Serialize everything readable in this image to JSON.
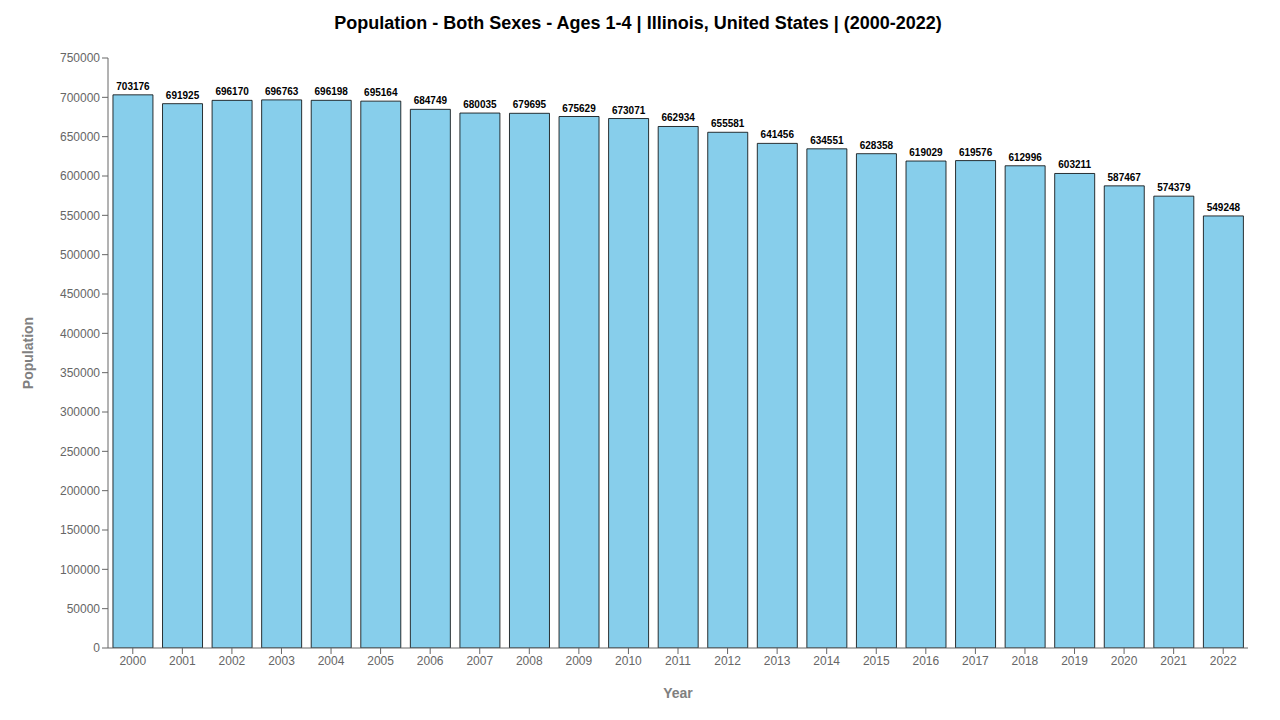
{
  "chart_data": {
    "type": "bar",
    "title": "Population - Both Sexes - Ages 1-4 | Illinois, United States |  (2000-2022)",
    "xlabel": "Year",
    "ylabel": "Population",
    "categories": [
      "2000",
      "2001",
      "2002",
      "2003",
      "2004",
      "2005",
      "2006",
      "2007",
      "2008",
      "2009",
      "2010",
      "2011",
      "2012",
      "2013",
      "2014",
      "2015",
      "2016",
      "2017",
      "2018",
      "2019",
      "2020",
      "2021",
      "2022"
    ],
    "values": [
      703176,
      691925,
      696170,
      696763,
      696198,
      695164,
      684749,
      680035,
      679695,
      675629,
      673071,
      662934,
      655581,
      641456,
      634551,
      628358,
      619029,
      619576,
      612996,
      603211,
      587467,
      574379,
      549248
    ],
    "color": "#87CEEB",
    "ylim": [
      0,
      750000
    ],
    "yticks": [
      0,
      50000,
      100000,
      150000,
      200000,
      250000,
      300000,
      350000,
      400000,
      450000,
      500000,
      550000,
      600000,
      650000,
      700000,
      750000
    ],
    "grid": false,
    "data_labels": true
  }
}
